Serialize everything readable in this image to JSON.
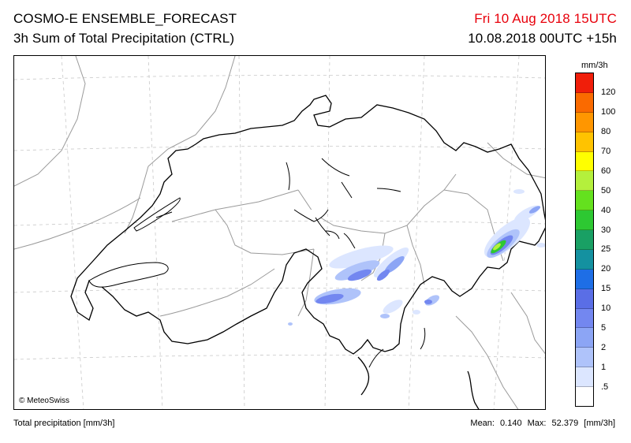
{
  "header": {
    "title": "COSMO-E ENSEMBLE_FORECAST",
    "subtitle": "3h Sum of Total Precipitation (CTRL)",
    "valid_time": "Fri 10 Aug 2018 15UTC",
    "run_info": "10.08.2018 00UTC +15h"
  },
  "map": {
    "copyright": "© MeteoSwiss"
  },
  "legend": {
    "unit": "mm/3h",
    "classes": [
      {
        "label": "120",
        "color": "#f01e0a"
      },
      {
        "label": "100",
        "color": "#fa6a00"
      },
      {
        "label": "80",
        "color": "#ff9600"
      },
      {
        "label": "70",
        "color": "#ffc300"
      },
      {
        "label": "60",
        "color": "#ffff00"
      },
      {
        "label": "50",
        "color": "#b4f03c"
      },
      {
        "label": "40",
        "color": "#64e11e"
      },
      {
        "label": "30",
        "color": "#2dc832"
      },
      {
        "label": "25",
        "color": "#19a064"
      },
      {
        "label": "20",
        "color": "#1491a0"
      },
      {
        "label": "15",
        "color": "#1e6ee6"
      },
      {
        "label": "10",
        "color": "#5a6ee6"
      },
      {
        "label": "5",
        "color": "#7387f0"
      },
      {
        "label": "2",
        "color": "#8ca5f5"
      },
      {
        "label": "1",
        "color": "#afc3fa"
      },
      {
        "label": ".5",
        "color": "#dce6ff"
      },
      {
        "label": "",
        "color": "#ffffff"
      }
    ]
  },
  "footer": {
    "left": "Total precipitation [mm/3h]",
    "mean_label": "Mean:",
    "mean_value": "0.140",
    "max_label": "Max:",
    "max_value": "52.379",
    "unit": "[mm/3h]"
  }
}
